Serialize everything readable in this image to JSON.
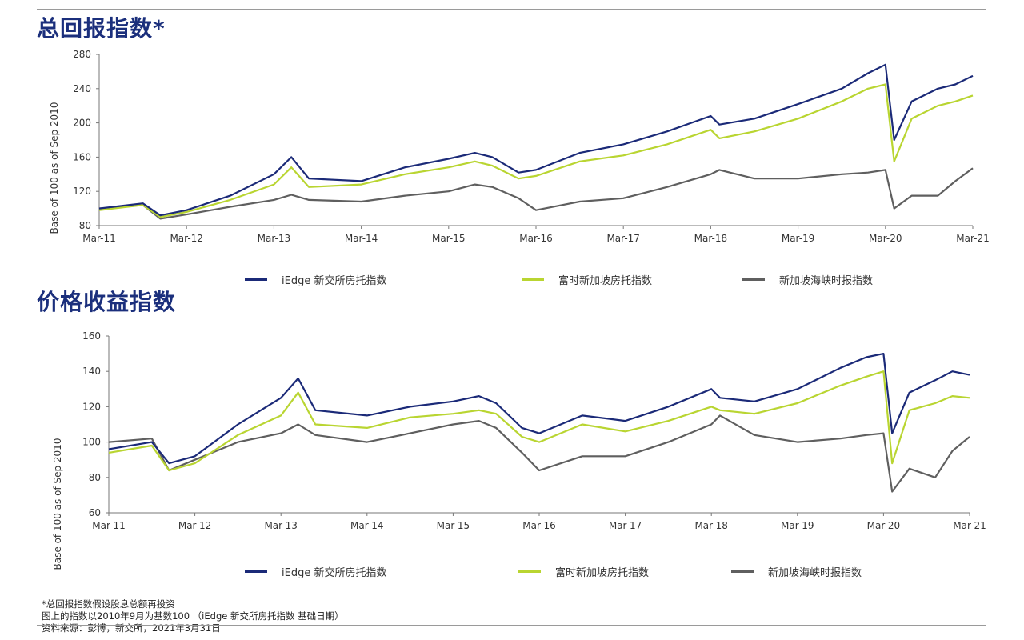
{
  "colors": {
    "iedge": "#1b2a78",
    "ftse": "#b9d531",
    "sti": "#5f5f5f",
    "heading": "#1b2f7c"
  },
  "headings": {
    "total_return": "总回报指数*",
    "price_return": "价格收益指数"
  },
  "legend": {
    "iedge": "iEdge 新交所房托指数",
    "ftse": "富时新加坡房托指数",
    "sti": "新加坡海峡时报指数"
  },
  "notes": {
    "line1": "*总回报指数假设股息总额再投资",
    "line2": "图上的指数以2010年9月为基数100 （iEdge 新交所房托指数 基础日期）",
    "line3": "资料来源：彭博，新交所，2021年3月31日"
  },
  "chart_data": [
    {
      "type": "line",
      "title": "总回报指数*",
      "xlabel": "",
      "ylabel": "Base of 100 as of Sep 2010",
      "ylim": [
        80,
        280
      ],
      "yticks": [
        80,
        120,
        160,
        200,
        240,
        280
      ],
      "x": [
        "Mar-11",
        "Mar-12",
        "Mar-13",
        "Mar-14",
        "Mar-15",
        "Mar-16",
        "Mar-17",
        "Mar-18",
        "Mar-19",
        "Mar-20",
        "Mar-21"
      ],
      "series": [
        {
          "name": "iEdge 新交所房托指数",
          "color_key": "iedge",
          "points": [
            [
              0,
              100
            ],
            [
              0.5,
              106
            ],
            [
              0.7,
              92
            ],
            [
              1,
              98
            ],
            [
              1.5,
              115
            ],
            [
              2,
              140
            ],
            [
              2.2,
              160
            ],
            [
              2.4,
              135
            ],
            [
              3,
              132
            ],
            [
              3.5,
              148
            ],
            [
              4,
              158
            ],
            [
              4.3,
              165
            ],
            [
              4.5,
              160
            ],
            [
              4.8,
              142
            ],
            [
              5,
              145
            ],
            [
              5.5,
              165
            ],
            [
              6,
              175
            ],
            [
              6.5,
              190
            ],
            [
              7,
              208
            ],
            [
              7.1,
              198
            ],
            [
              7.5,
              205
            ],
            [
              8,
              222
            ],
            [
              8.5,
              240
            ],
            [
              8.8,
              258
            ],
            [
              9,
              268
            ],
            [
              9.1,
              180
            ],
            [
              9.3,
              225
            ],
            [
              9.6,
              240
            ],
            [
              9.8,
              245
            ],
            [
              10,
              255
            ]
          ]
        },
        {
          "name": "富时新加坡房托指数",
          "color_key": "ftse",
          "points": [
            [
              0,
              98
            ],
            [
              0.5,
              104
            ],
            [
              0.7,
              90
            ],
            [
              1,
              96
            ],
            [
              1.5,
              110
            ],
            [
              2,
              128
            ],
            [
              2.2,
              148
            ],
            [
              2.4,
              125
            ],
            [
              3,
              128
            ],
            [
              3.5,
              140
            ],
            [
              4,
              148
            ],
            [
              4.3,
              155
            ],
            [
              4.5,
              150
            ],
            [
              4.8,
              135
            ],
            [
              5,
              138
            ],
            [
              5.5,
              155
            ],
            [
              6,
              162
            ],
            [
              6.5,
              175
            ],
            [
              7,
              192
            ],
            [
              7.1,
              182
            ],
            [
              7.5,
              190
            ],
            [
              8,
              205
            ],
            [
              8.5,
              225
            ],
            [
              8.8,
              240
            ],
            [
              9,
              245
            ],
            [
              9.1,
              155
            ],
            [
              9.3,
              205
            ],
            [
              9.6,
              220
            ],
            [
              9.8,
              225
            ],
            [
              10,
              232
            ]
          ]
        },
        {
          "name": "新加坡海峡时报指数",
          "color_key": "sti",
          "points": [
            [
              0,
              100
            ],
            [
              0.5,
              104
            ],
            [
              0.7,
              88
            ],
            [
              1,
              93
            ],
            [
              1.5,
              102
            ],
            [
              2,
              110
            ],
            [
              2.2,
              116
            ],
            [
              2.4,
              110
            ],
            [
              3,
              108
            ],
            [
              3.5,
              115
            ],
            [
              4,
              120
            ],
            [
              4.3,
              128
            ],
            [
              4.5,
              125
            ],
            [
              4.8,
              112
            ],
            [
              5,
              98
            ],
            [
              5.5,
              108
            ],
            [
              6,
              112
            ],
            [
              6.5,
              125
            ],
            [
              7,
              140
            ],
            [
              7.1,
              145
            ],
            [
              7.5,
              135
            ],
            [
              8,
              135
            ],
            [
              8.5,
              140
            ],
            [
              8.8,
              142
            ],
            [
              9,
              145
            ],
            [
              9.1,
              100
            ],
            [
              9.3,
              115
            ],
            [
              9.6,
              115
            ],
            [
              9.8,
              132
            ],
            [
              10,
              147
            ]
          ]
        }
      ]
    },
    {
      "type": "line",
      "title": "价格收益指数",
      "xlabel": "",
      "ylabel": "Base of 100 as of Sep 2010",
      "ylim": [
        60,
        160
      ],
      "yticks": [
        60,
        80,
        100,
        120,
        140,
        160
      ],
      "x": [
        "Mar-11",
        "Mar-12",
        "Mar-13",
        "Mar-14",
        "Mar-15",
        "Mar-16",
        "Mar-17",
        "Mar-18",
        "Mar-19",
        "Mar-20",
        "Mar-21"
      ],
      "series": [
        {
          "name": "iEdge 新交所房托指数",
          "color_key": "iedge",
          "points": [
            [
              0,
              96
            ],
            [
              0.5,
              100
            ],
            [
              0.7,
              88
            ],
            [
              1,
              92
            ],
            [
              1.5,
              110
            ],
            [
              2,
              125
            ],
            [
              2.2,
              136
            ],
            [
              2.4,
              118
            ],
            [
              3,
              115
            ],
            [
              3.5,
              120
            ],
            [
              4,
              123
            ],
            [
              4.3,
              126
            ],
            [
              4.5,
              122
            ],
            [
              4.8,
              108
            ],
            [
              5,
              105
            ],
            [
              5.5,
              115
            ],
            [
              6,
              112
            ],
            [
              6.5,
              120
            ],
            [
              7,
              130
            ],
            [
              7.1,
              125
            ],
            [
              7.5,
              123
            ],
            [
              8,
              130
            ],
            [
              8.5,
              142
            ],
            [
              8.8,
              148
            ],
            [
              9,
              150
            ],
            [
              9.1,
              105
            ],
            [
              9.3,
              128
            ],
            [
              9.6,
              135
            ],
            [
              9.8,
              140
            ],
            [
              10,
              138
            ]
          ]
        },
        {
          "name": "富时新加坡房托指数",
          "color_key": "ftse",
          "points": [
            [
              0,
              94
            ],
            [
              0.5,
              98
            ],
            [
              0.7,
              84
            ],
            [
              1,
              88
            ],
            [
              1.5,
              104
            ],
            [
              2,
              115
            ],
            [
              2.2,
              128
            ],
            [
              2.4,
              110
            ],
            [
              3,
              108
            ],
            [
              3.5,
              114
            ],
            [
              4,
              116
            ],
            [
              4.3,
              118
            ],
            [
              4.5,
              116
            ],
            [
              4.8,
              103
            ],
            [
              5,
              100
            ],
            [
              5.5,
              110
            ],
            [
              6,
              106
            ],
            [
              6.5,
              112
            ],
            [
              7,
              120
            ],
            [
              7.1,
              118
            ],
            [
              7.5,
              116
            ],
            [
              8,
              122
            ],
            [
              8.5,
              132
            ],
            [
              8.8,
              137
            ],
            [
              9,
              140
            ],
            [
              9.1,
              88
            ],
            [
              9.3,
              118
            ],
            [
              9.6,
              122
            ],
            [
              9.8,
              126
            ],
            [
              10,
              125
            ]
          ]
        },
        {
          "name": "新加坡海峡时报指数",
          "color_key": "sti",
          "points": [
            [
              0,
              100
            ],
            [
              0.5,
              102
            ],
            [
              0.7,
              84
            ],
            [
              1,
              90
            ],
            [
              1.5,
              100
            ],
            [
              2,
              105
            ],
            [
              2.2,
              110
            ],
            [
              2.4,
              104
            ],
            [
              3,
              100
            ],
            [
              3.5,
              105
            ],
            [
              4,
              110
            ],
            [
              4.3,
              112
            ],
            [
              4.5,
              108
            ],
            [
              4.8,
              94
            ],
            [
              5,
              84
            ],
            [
              5.5,
              92
            ],
            [
              6,
              92
            ],
            [
              6.5,
              100
            ],
            [
              7,
              110
            ],
            [
              7.1,
              115
            ],
            [
              7.5,
              104
            ],
            [
              8,
              100
            ],
            [
              8.5,
              102
            ],
            [
              8.8,
              104
            ],
            [
              9,
              105
            ],
            [
              9.1,
              72
            ],
            [
              9.3,
              85
            ],
            [
              9.6,
              80
            ],
            [
              9.8,
              95
            ],
            [
              10,
              103
            ]
          ]
        }
      ]
    }
  ]
}
